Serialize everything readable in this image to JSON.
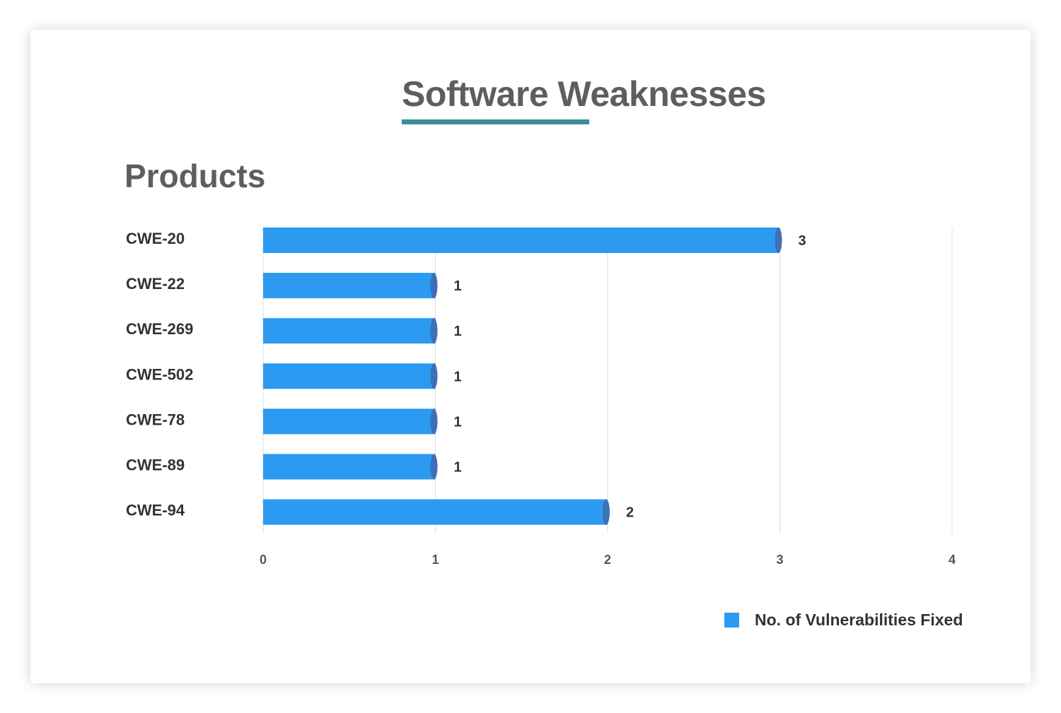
{
  "title": "Software Weaknesses",
  "section_heading": "Products",
  "colors": {
    "bar": "#2b9af0",
    "bar_cap": "#3f6fb8",
    "title_underline": "#3a8e96",
    "grid": "#dddddd"
  },
  "chart_data": {
    "type": "bar",
    "orientation": "horizontal",
    "categories": [
      "CWE-20",
      "CWE-22",
      "CWE-269",
      "CWE-502",
      "CWE-78",
      "CWE-89",
      "CWE-94"
    ],
    "series": [
      {
        "name": "No. of Vulnerabilities Fixed",
        "values": [
          3,
          1,
          1,
          1,
          1,
          1,
          2
        ]
      }
    ],
    "xlim": [
      0,
      4
    ],
    "x_ticks": [
      "0",
      "1",
      "2",
      "3",
      "4"
    ],
    "grid": true,
    "legend_position": "bottom-right",
    "data_labels": true
  }
}
